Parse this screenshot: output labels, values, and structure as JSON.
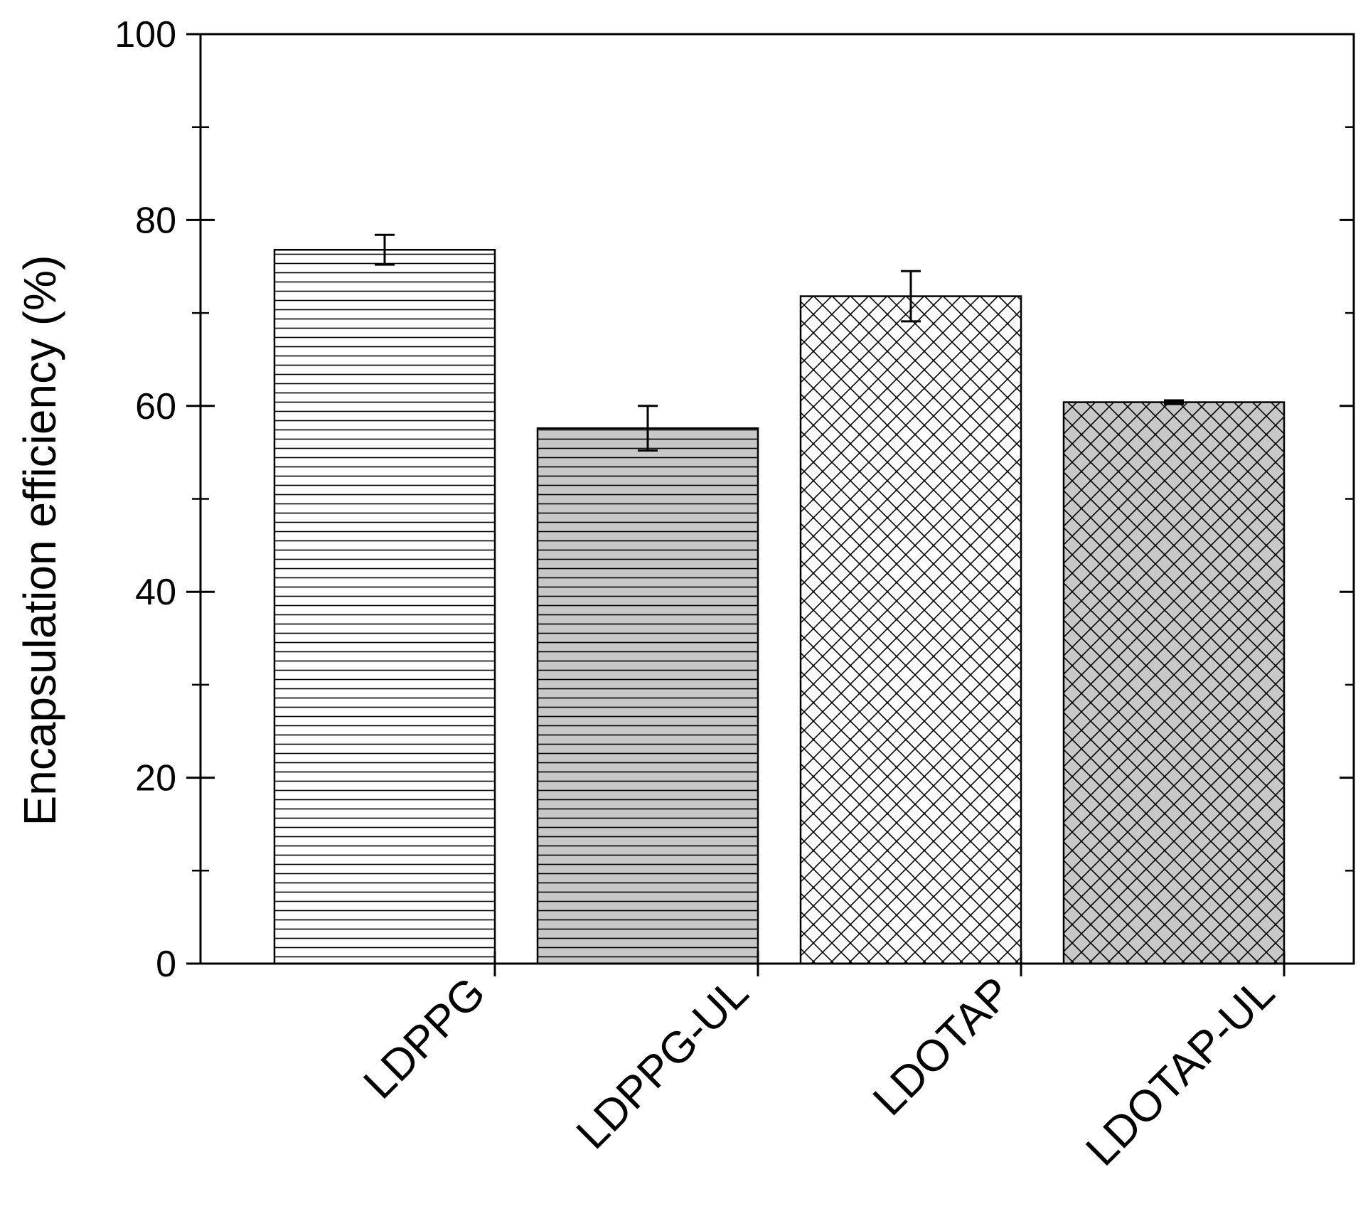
{
  "chart_data": {
    "type": "bar",
    "title": "",
    "xlabel": "",
    "ylabel": "Encapsulation efficiency (%)",
    "ylim": [
      0,
      100
    ],
    "yticks": [
      "0",
      "20",
      "40",
      "60",
      "80",
      "100"
    ],
    "grid": false,
    "categories": [
      "LDPPG",
      "LDPPG-UL",
      "LDOTAP",
      "LDOTAP-UL"
    ],
    "values": [
      76.8,
      57.6,
      71.8,
      60.4
    ],
    "errors": [
      1.6,
      2.4,
      2.7,
      0.2
    ],
    "colors": {
      "LDPPG": "#ffffff",
      "LDPPG-UL": "#c8c8c8",
      "LDOTAP": "#ffffff",
      "LDOTAP-UL": "#c8c8c8"
    },
    "patterns": [
      "horizontal-lines",
      "horizontal-lines",
      "crosshatch",
      "crosshatch"
    ]
  }
}
